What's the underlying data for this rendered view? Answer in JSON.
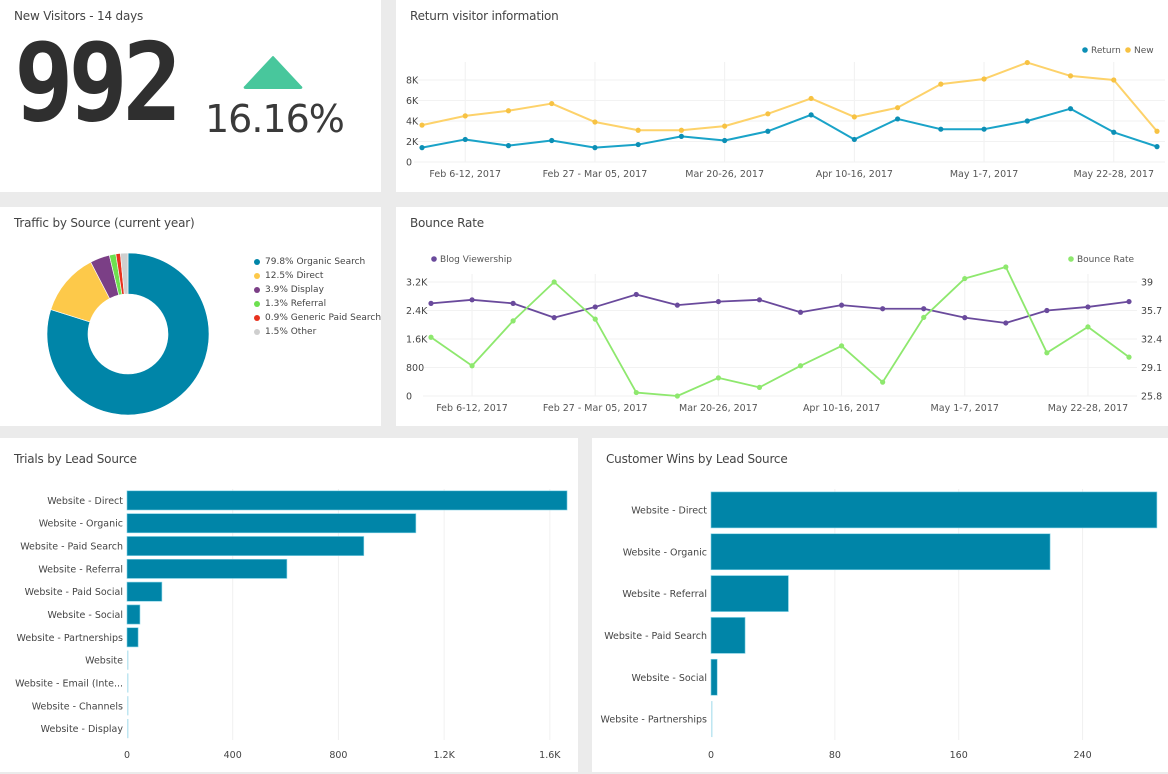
{
  "colors": {
    "teal": "#0085a8",
    "yellow": "#fdc94a",
    "purple": "#6a4a9c",
    "green": "#8ee86e",
    "red": "#e8321e",
    "grey": "#cfcfcf",
    "kpi_up": "#48c79c",
    "display_purple": "#7b3f86",
    "referral_green": "#6de04f"
  },
  "kpi": {
    "title": "New Visitors - 14 days",
    "value": "992",
    "change": "16.16%",
    "trend": "up",
    "trend_icon": "triangle-up-icon"
  },
  "chart_data": [
    {
      "id": "return-visitors",
      "type": "line",
      "title": "Return visitor information",
      "xlabel": "",
      "ylabel": "",
      "ylim": [
        0,
        8000
      ],
      "yticks": [
        "0",
        "2K",
        "4K",
        "6K",
        "8K"
      ],
      "ytick_values": [
        0,
        2000,
        4000,
        6000,
        8000
      ],
      "x_tick_labels": [
        "Feb 6-12, 2017",
        "Feb 27 - Mar 05, 2017",
        "Mar 20-26, 2017",
        "Apr 10-16, 2017",
        "May 1-7, 2017",
        "May 22-28, 2017"
      ],
      "x_tick_indices": [
        1,
        4,
        7,
        10,
        13,
        16
      ],
      "legend": "top-right",
      "grid": true,
      "series": [
        {
          "name": "Return",
          "color": "#1aa3c8",
          "values": [
            1400,
            2200,
            1600,
            2100,
            1400,
            1700,
            2500,
            2100,
            3000,
            4600,
            2200,
            4200,
            3200,
            3200,
            4000,
            5200,
            2900,
            1500
          ]
        },
        {
          "name": "New",
          "color": "#fdd26a",
          "values": [
            3600,
            4500,
            5000,
            5700,
            3900,
            3100,
            3100,
            3500,
            4700,
            6200,
            4400,
            5300,
            7600,
            8100,
            9700,
            8400,
            8000,
            3000
          ]
        }
      ]
    },
    {
      "id": "traffic-by-source",
      "type": "pie",
      "title": "Traffic by Source (current year)",
      "donut": true,
      "legend": "right",
      "slices": [
        {
          "label": "79.8% Organic Search",
          "name": "Organic Search",
          "value": 79.8,
          "color": "#0085a8"
        },
        {
          "label": "12.5% Direct",
          "name": "Direct",
          "value": 12.5,
          "color": "#fdc94a"
        },
        {
          "label": "3.9% Display",
          "name": "Display",
          "value": 3.9,
          "color": "#7b3f86"
        },
        {
          "label": "1.3% Referral",
          "name": "Referral",
          "value": 1.3,
          "color": "#6de04f"
        },
        {
          "label": "0.9% Generic Paid Search",
          "name": "Generic Paid Search",
          "value": 0.9,
          "color": "#e8321e"
        },
        {
          "label": "1.5% Other",
          "name": "Other",
          "value": 1.5,
          "color": "#cfcfcf"
        }
      ]
    },
    {
      "id": "bounce-rate",
      "type": "line",
      "title": "Bounce Rate",
      "legend": "top",
      "grid": true,
      "x_tick_labels": [
        "Feb 6-12, 2017",
        "Feb 27 - Mar 05, 2017",
        "Mar 20-26, 2017",
        "Apr 10-16, 2017",
        "May 1-7, 2017",
        "May 22-28, 2017"
      ],
      "x_tick_indices": [
        1,
        4,
        7,
        10,
        13,
        16
      ],
      "y_left": {
        "ylim": [
          0,
          3200
        ],
        "yticks": [
          "0",
          "800",
          "1.6K",
          "2.4K",
          "3.2K"
        ],
        "ytick_values": [
          0,
          800,
          1600,
          2400,
          3200
        ]
      },
      "y_right": {
        "ylim": [
          25.8,
          39
        ],
        "yticks": [
          "25.8",
          "29.1",
          "32.4",
          "35.7",
          "39"
        ],
        "ytick_values": [
          25.8,
          29.1,
          32.4,
          35.7,
          39
        ]
      },
      "series": [
        {
          "name": "Blog Viewership",
          "axis": "left",
          "color": "#6a4a9c",
          "values": [
            2600,
            2700,
            2600,
            2200,
            2500,
            2850,
            2550,
            2650,
            2700,
            2350,
            2550,
            2450,
            2450,
            2200,
            2050,
            2400,
            2500,
            2650
          ]
        },
        {
          "name": "Bounce Rate",
          "axis": "right",
          "color": "#8ee86e",
          "values": [
            32.6,
            29.3,
            34.5,
            39.0,
            34.7,
            26.2,
            25.8,
            27.9,
            26.8,
            29.3,
            31.6,
            27.4,
            34.9,
            39.4,
            40.9,
            30.8,
            33.8,
            30.3
          ]
        }
      ]
    },
    {
      "id": "trials-by-lead-source",
      "type": "bar",
      "orientation": "horizontal",
      "title": "Trials by Lead Source",
      "xlim": [
        0,
        1680
      ],
      "xticks": [
        "0",
        "400",
        "800",
        "1.2K",
        "1.6K"
      ],
      "xtick_values": [
        0,
        400,
        800,
        1200,
        1600
      ],
      "grid": true,
      "categories": [
        "Website - Direct",
        "Website - Organic",
        "Website - Paid Search",
        "Website - Referral",
        "Website - Paid Social",
        "Website - Social",
        "Website - Partnerships",
        "Website",
        "Website - Email (Inte...",
        "Website - Channels",
        "Website - Display"
      ],
      "values": [
        1665,
        1093,
        896,
        605,
        132,
        49,
        42,
        4,
        3,
        2,
        2
      ],
      "color": "#0085a8"
    },
    {
      "id": "customer-wins-by-lead-source",
      "type": "bar",
      "orientation": "horizontal",
      "title": "Customer Wins by Lead Source",
      "xlim": [
        0,
        290
      ],
      "xticks": [
        "0",
        "80",
        "160",
        "240"
      ],
      "xtick_values": [
        0,
        80,
        160,
        240
      ],
      "grid": true,
      "categories": [
        "Website - Direct",
        "Website - Organic",
        "Website - Referral",
        "Website - Paid Search",
        "Website - Social",
        "Website - Partnerships"
      ],
      "values": [
        288,
        219,
        50,
        22,
        4,
        1
      ],
      "color": "#0085a8"
    }
  ]
}
